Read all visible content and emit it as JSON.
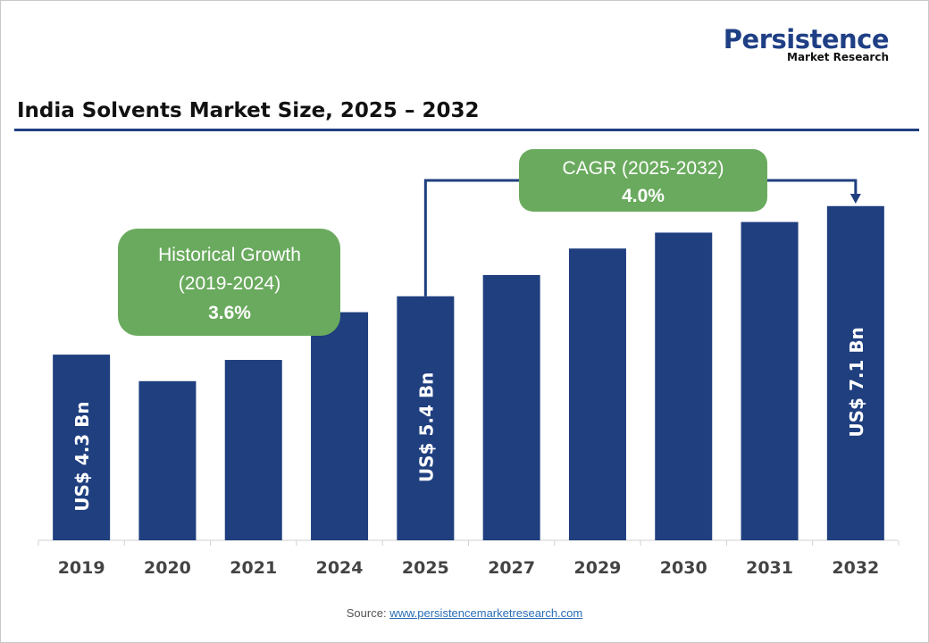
{
  "logo": {
    "brand": "Persistence",
    "sub": "Market Research"
  },
  "chart_data": {
    "type": "bar",
    "title": "India Solvents Market Size, 2025 – 2032",
    "categories": [
      "2019",
      "2020",
      "2021",
      "2024",
      "2025",
      "2027",
      "2029",
      "2030",
      "2031",
      "2032"
    ],
    "values": [
      4.3,
      3.8,
      4.2,
      5.1,
      5.4,
      5.8,
      6.3,
      6.6,
      6.8,
      7.1
    ],
    "ylim": [
      0.8,
      7.5
    ],
    "grid": false,
    "bar_color": "#1f3f7f",
    "data_labels": [
      {
        "category": "2019",
        "text": "US$ 4.3 Bn"
      },
      {
        "category": "2025",
        "text": "US$ 5.4 Bn"
      },
      {
        "category": "2032",
        "text": "US$ 7.1 Bn"
      }
    ],
    "annotations": {
      "historical": {
        "line1": "Historical Growth",
        "line2": "(2019-2024)",
        "value": "3.6%"
      },
      "cagr": {
        "line1": "CAGR (2025-2032)",
        "value": "4.0%"
      }
    },
    "annotation_color": "#6aaa5e"
  },
  "source": {
    "label": "Source:",
    "link": "www.persistencemarketresearch.com"
  }
}
